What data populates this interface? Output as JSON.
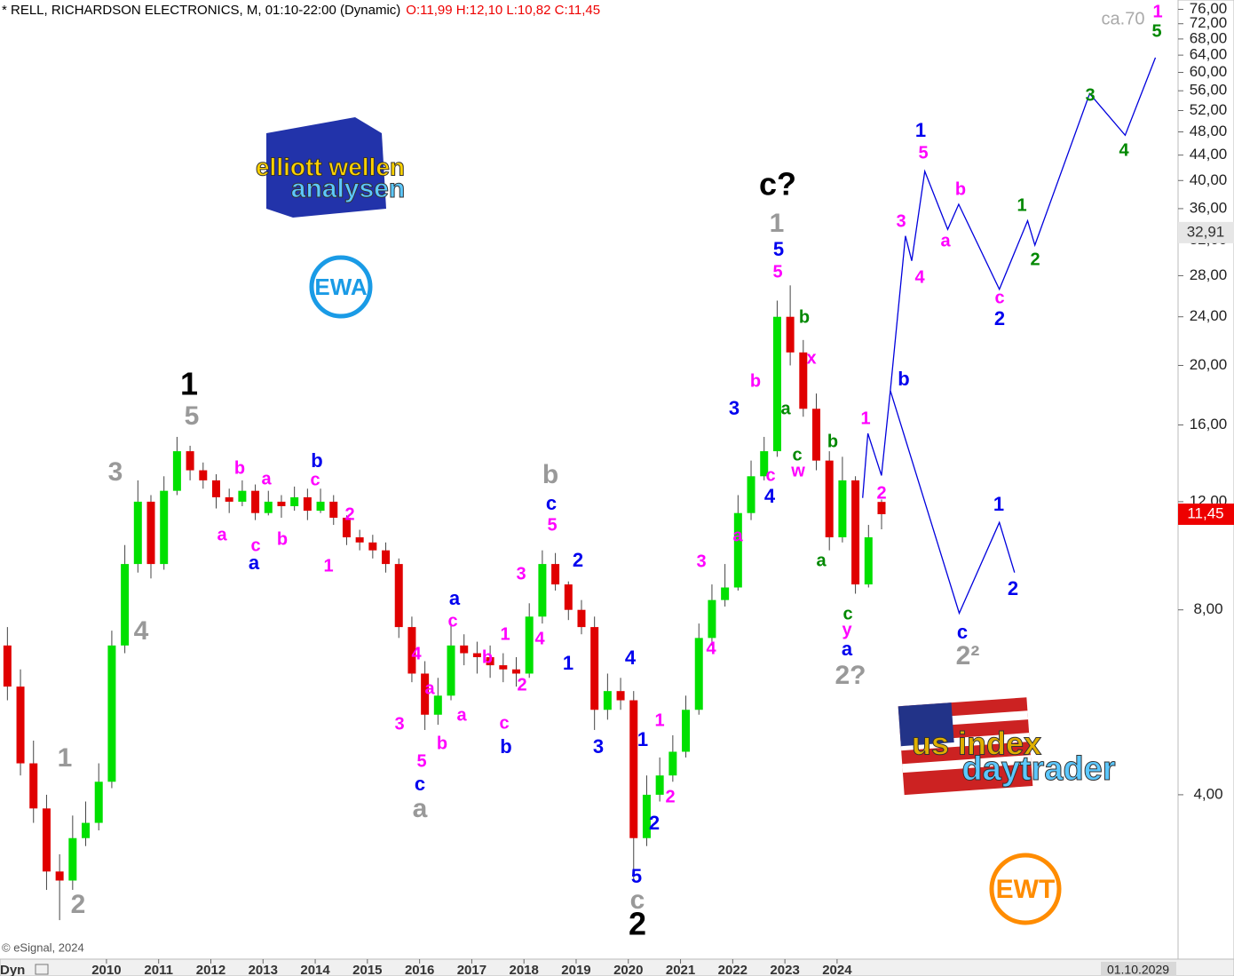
{
  "header": {
    "title": "* RELL, RICHARDSON ELECTRONICS, M, 01:10-22:00 (Dynamic)",
    "ohlc": "O:11,99 H:12,10 L:10,82 C:11,45"
  },
  "footer": {
    "credit": "© eSignal, 2024",
    "mode": "Dyn",
    "end_date": "01.10.2029"
  },
  "logos": {
    "ew_top": "elliott wellen",
    "ew_bottom": "analysen",
    "ewa": "EWA",
    "us_top": "us index",
    "us_bottom": "daytrader",
    "ewt": "EWT"
  },
  "chart_data": {
    "type": "candlestick",
    "log_scale": true,
    "up_color": "#00e000",
    "down_color": "#e00000",
    "x": [
      2008,
      2008.25,
      2008.5,
      2008.75,
      2009,
      2009.25,
      2009.5,
      2009.75,
      2010,
      2010.25,
      2010.5,
      2010.75,
      2011,
      2011.25,
      2011.5,
      2011.75,
      2012,
      2012.25,
      2012.5,
      2012.75,
      2013,
      2013.25,
      2013.5,
      2013.75,
      2014,
      2014.25,
      2014.5,
      2014.75,
      2015,
      2015.25,
      2015.5,
      2015.75,
      2016,
      2016.25,
      2016.5,
      2016.75,
      2017,
      2017.25,
      2017.5,
      2017.75,
      2018,
      2018.25,
      2018.5,
      2018.75,
      2019,
      2019.25,
      2019.5,
      2019.75,
      2020,
      2020.25,
      2020.5,
      2020.75,
      2021,
      2021.25,
      2021.5,
      2021.75,
      2022,
      2022.25,
      2022.5,
      2022.75,
      2023,
      2023.25,
      2023.5,
      2023.75,
      2024,
      2024.25,
      2024.5,
      2024.75
    ],
    "open": [
      7.0,
      6.0,
      4.5,
      3.8,
      3.0,
      2.9,
      3.4,
      3.6,
      4.2,
      7.0,
      9.5,
      12.0,
      9.5,
      12.5,
      14.5,
      13.5,
      13.0,
      12.2,
      12.0,
      12.5,
      11.5,
      12.0,
      11.8,
      12.2,
      11.6,
      12.0,
      11.3,
      10.5,
      10.3,
      10.0,
      9.5,
      7.5,
      6.3,
      5.4,
      5.8,
      7.0,
      6.8,
      6.7,
      6.5,
      6.4,
      6.3,
      7.8,
      9.5,
      8.8,
      8.0,
      7.5,
      5.5,
      5.9,
      5.7,
      3.4,
      4.0,
      4.3,
      4.7,
      5.5,
      7.2,
      8.3,
      8.7,
      11.5,
      13.2,
      14.5,
      24.0,
      21.0,
      17.0,
      14.0,
      10.5,
      13.0,
      8.8,
      11.99
    ],
    "high": [
      7.5,
      6.4,
      4.9,
      4.0,
      3.2,
      3.7,
      3.9,
      4.5,
      7.4,
      10.2,
      13.0,
      12.3,
      13.2,
      15.3,
      14.8,
      13.9,
      13.3,
      12.6,
      13.0,
      12.8,
      12.5,
      12.3,
      12.7,
      12.6,
      12.6,
      12.3,
      11.4,
      10.8,
      10.6,
      10.3,
      9.7,
      7.8,
      6.6,
      6.2,
      7.6,
      7.3,
      7.1,
      7.0,
      6.8,
      6.7,
      8.2,
      10.0,
      9.9,
      8.9,
      8.3,
      7.8,
      6.3,
      6.2,
      5.9,
      4.3,
      4.6,
      5.0,
      5.8,
      7.6,
      8.8,
      9.5,
      12.3,
      14.0,
      15.3,
      25.5,
      27.0,
      22.0,
      18.0,
      14.5,
      14.2,
      13.2,
      11.0,
      12.1
    ],
    "low": [
      5.7,
      4.3,
      3.6,
      2.8,
      2.5,
      2.8,
      3.3,
      3.5,
      4.1,
      6.8,
      9.2,
      9.0,
      9.3,
      12.3,
      13.0,
      12.6,
      11.7,
      11.5,
      11.8,
      11.2,
      11.4,
      11.3,
      11.6,
      11.2,
      11.5,
      11.0,
      10.2,
      10.0,
      9.7,
      9.2,
      7.2,
      6.1,
      5.1,
      5.2,
      5.7,
      6.5,
      6.3,
      6.2,
      6.1,
      6.0,
      6.2,
      7.6,
      8.6,
      7.7,
      7.3,
      5.1,
      5.3,
      5.5,
      2.9,
      3.3,
      3.9,
      4.2,
      4.6,
      5.4,
      7.0,
      8.1,
      8.6,
      11.2,
      13.0,
      14.2,
      20.0,
      16.5,
      13.5,
      10.0,
      10.3,
      8.5,
      8.7,
      10.82
    ],
    "close": [
      6.0,
      4.5,
      3.8,
      3.0,
      2.9,
      3.4,
      3.6,
      4.2,
      7.0,
      9.5,
      12.0,
      9.5,
      12.5,
      14.5,
      13.5,
      13.0,
      12.2,
      12.0,
      12.5,
      11.5,
      12.0,
      11.8,
      12.2,
      11.6,
      12.0,
      11.3,
      10.5,
      10.3,
      10.0,
      9.5,
      7.5,
      6.3,
      5.4,
      5.8,
      7.0,
      6.8,
      6.7,
      6.5,
      6.4,
      6.3,
      7.8,
      9.5,
      8.8,
      8.0,
      7.5,
      5.5,
      5.9,
      5.7,
      3.4,
      4.0,
      4.3,
      4.7,
      5.5,
      7.2,
      8.3,
      8.7,
      11.5,
      13.2,
      14.5,
      24.0,
      21.0,
      17.0,
      14.0,
      10.5,
      13.0,
      8.8,
      10.5,
      11.45
    ],
    "xlim": [
      2007.96,
      2030.5
    ],
    "xticks": [
      2010,
      2011,
      2012,
      2013,
      2014,
      2015,
      2016,
      2017,
      2018,
      2019,
      2020,
      2021,
      2022,
      2023,
      2024
    ],
    "ylim": [
      2.16,
      78.7
    ],
    "yticks": [
      {
        "value": 76,
        "label": "76,00"
      },
      {
        "value": 72,
        "label": "72,00"
      },
      {
        "value": 68,
        "label": "68,00"
      },
      {
        "value": 64,
        "label": "64,00"
      },
      {
        "value": 60,
        "label": "60,00"
      },
      {
        "value": 56,
        "label": "56,00"
      },
      {
        "value": 52,
        "label": "52,00"
      },
      {
        "value": 48,
        "label": "48,00"
      },
      {
        "value": 44,
        "label": "44,00"
      },
      {
        "value": 40,
        "label": "40,00"
      },
      {
        "value": 36,
        "label": "36,00"
      },
      {
        "value": 32,
        "label": "32,00"
      },
      {
        "value": 28,
        "label": "28,00"
      },
      {
        "value": 24,
        "label": "24,00"
      },
      {
        "value": 20,
        "label": "20,00"
      },
      {
        "value": 16,
        "label": "16,00"
      },
      {
        "value": 12,
        "label": "12,00"
      },
      {
        "value": 8,
        "label": "8,00"
      },
      {
        "value": 4,
        "label": "4,00"
      }
    ],
    "price_tags": [
      {
        "value": 32.91,
        "label": "32,91",
        "color": "#e6e6e6"
      },
      {
        "value": 11.45,
        "label": "11,45",
        "color": "#ee0000"
      }
    ],
    "projections": [
      {
        "color": "#0000dd",
        "x": [
          2024.49,
          2024.59,
          2024.85,
          2025.02,
          2025.31,
          2025.43,
          2025.68,
          2026.12,
          2026.33,
          2027.11,
          2027.65,
          2027.79,
          2028.84,
          2029.52,
          2030.1
        ],
        "values": [
          12.17,
          15.5,
          13.24,
          18.2,
          32.5,
          29.6,
          41.4,
          33.3,
          36.6,
          26.6,
          34.4,
          31.4,
          55.4,
          47.4,
          63.4
        ]
      },
      {
        "color": "#0000dd",
        "x": [
          2025.02,
          2026.34,
          2027.11,
          2027.4
        ],
        "values": [
          18.2,
          7.9,
          11.1,
          9.2
        ]
      }
    ],
    "annotations": [
      {
        "text": "1",
        "color": "#000000"
      },
      {
        "text": "2",
        "color": "#000000"
      },
      {
        "text": "c?",
        "color": "#000000"
      },
      {
        "text": "5",
        "color": "#999999"
      },
      {
        "text": "3",
        "color": "#999999"
      },
      {
        "text": "4",
        "color": "#999999"
      },
      {
        "text": "1",
        "color": "#999999"
      },
      {
        "text": "2",
        "color": "#999999"
      },
      {
        "text": "b",
        "color": "#999999"
      },
      {
        "text": "a",
        "color": "#999999"
      },
      {
        "text": "c",
        "color": "#999999"
      },
      {
        "text": "1",
        "color": "#999999"
      },
      {
        "text": "2?",
        "color": "#999999"
      },
      {
        "text": "2²",
        "color": "#999999"
      },
      {
        "text": "ca.70",
        "color": "#aaaaaa"
      },
      {
        "text": "b",
        "color": "#0000ee"
      },
      {
        "text": "a",
        "color": "#0000ee"
      },
      {
        "text": "a",
        "color": "#0000ee"
      },
      {
        "text": "c",
        "color": "#0000ee"
      },
      {
        "text": "b",
        "color": "#0000ee"
      },
      {
        "text": "c",
        "color": "#0000ee"
      },
      {
        "text": "2",
        "color": "#0000ee"
      },
      {
        "text": "1",
        "color": "#0000ee"
      },
      {
        "text": "4",
        "color": "#0000ee"
      },
      {
        "text": "3",
        "color": "#0000ee"
      },
      {
        "text": "1",
        "color": "#0000ee"
      },
      {
        "text": "2",
        "color": "#0000ee"
      },
      {
        "text": "5",
        "color": "#0000ee"
      },
      {
        "text": "3",
        "color": "#0000ee"
      },
      {
        "text": "5",
        "color": "#0000ee"
      },
      {
        "text": "4",
        "color": "#0000ee"
      },
      {
        "text": "a",
        "color": "#0000ee"
      },
      {
        "text": "1",
        "color": "#0000ee"
      },
      {
        "text": "2",
        "color": "#0000ee"
      },
      {
        "text": "b",
        "color": "#0000ee"
      },
      {
        "text": "1",
        "color": "#0000ee"
      },
      {
        "text": "2",
        "color": "#0000ee"
      },
      {
        "text": "c",
        "color": "#0000ee"
      },
      {
        "text": "b",
        "color": "#ff00ff"
      },
      {
        "text": "a",
        "color": "#ff00ff"
      },
      {
        "text": "c",
        "color": "#ff00ff"
      },
      {
        "text": "2",
        "color": "#ff00ff"
      },
      {
        "text": "a",
        "color": "#ff00ff"
      },
      {
        "text": "c",
        "color": "#ff00ff"
      },
      {
        "text": "b",
        "color": "#ff00ff"
      },
      {
        "text": "1",
        "color": "#ff00ff"
      },
      {
        "text": "4",
        "color": "#ff00ff"
      },
      {
        "text": "a",
        "color": "#ff00ff"
      },
      {
        "text": "3",
        "color": "#ff00ff"
      },
      {
        "text": "5",
        "color": "#ff00ff"
      },
      {
        "text": "b",
        "color": "#ff00ff"
      },
      {
        "text": "a",
        "color": "#ff00ff"
      },
      {
        "text": "c",
        "color": "#ff00ff"
      },
      {
        "text": "1",
        "color": "#ff00ff"
      },
      {
        "text": "b",
        "color": "#ff00ff"
      },
      {
        "text": "2",
        "color": "#ff00ff"
      },
      {
        "text": "c",
        "color": "#ff00ff"
      },
      {
        "text": "3",
        "color": "#ff00ff"
      },
      {
        "text": "4",
        "color": "#ff00ff"
      },
      {
        "text": "5",
        "color": "#ff00ff"
      },
      {
        "text": "1",
        "color": "#ff00ff"
      },
      {
        "text": "2",
        "color": "#ff00ff"
      },
      {
        "text": "3",
        "color": "#ff00ff"
      },
      {
        "text": "4",
        "color": "#ff00ff"
      },
      {
        "text": "a",
        "color": "#ff00ff"
      },
      {
        "text": "c",
        "color": "#ff00ff"
      },
      {
        "text": "b",
        "color": "#ff00ff"
      },
      {
        "text": "5",
        "color": "#ff00ff"
      },
      {
        "text": "x",
        "color": "#ff00ff"
      },
      {
        "text": "w",
        "color": "#ff00ff"
      },
      {
        "text": "y",
        "color": "#ff00ff"
      },
      {
        "text": "1",
        "color": "#ff00ff"
      },
      {
        "text": "2",
        "color": "#ff00ff"
      },
      {
        "text": "3",
        "color": "#ff00ff"
      },
      {
        "text": "4",
        "color": "#ff00ff"
      },
      {
        "text": "5",
        "color": "#ff00ff"
      },
      {
        "text": "a",
        "color": "#ff00ff"
      },
      {
        "text": "b",
        "color": "#ff00ff"
      },
      {
        "text": "c",
        "color": "#ff00ff"
      },
      {
        "text": "1",
        "color": "#ff00ff"
      },
      {
        "text": "b",
        "color": "#008800"
      },
      {
        "text": "a",
        "color": "#008800"
      },
      {
        "text": "b",
        "color": "#008800"
      },
      {
        "text": "c",
        "color": "#008800"
      },
      {
        "text": "a",
        "color": "#008800"
      },
      {
        "text": "c",
        "color": "#008800"
      },
      {
        "text": "1",
        "color": "#008800"
      },
      {
        "text": "2",
        "color": "#008800"
      },
      {
        "text": "3",
        "color": "#008800"
      },
      {
        "text": "4",
        "color": "#008800"
      },
      {
        "text": "5",
        "color": "#008800"
      }
    ]
  }
}
